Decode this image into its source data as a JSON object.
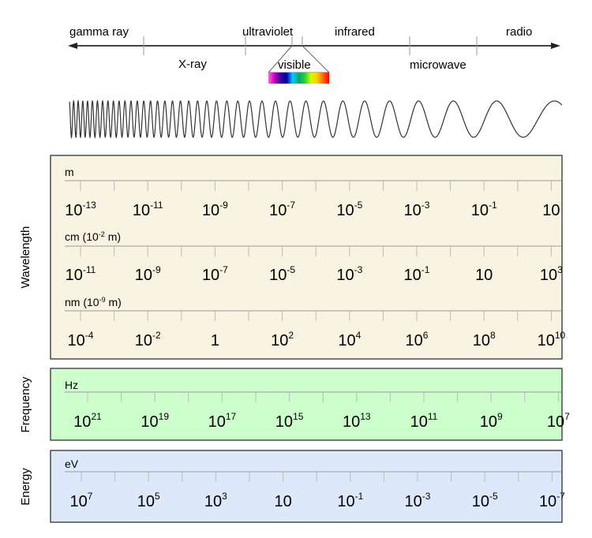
{
  "spectrum": {
    "bands_top": [
      "gamma ray",
      "ultraviolet",
      "infrared",
      "radio"
    ],
    "bands_bottom": [
      "X-ray",
      "visible",
      "microwave"
    ],
    "visible_colors": [
      "#ff66cc",
      "#cc00cc",
      "#330099",
      "#0000aa",
      "#00ccff",
      "#00aa66",
      "#33cc33",
      "#ccff00",
      "#ffcc00",
      "#ff6600",
      "#ff0000"
    ]
  },
  "wavelength": {
    "label": "Wavelength",
    "color": "#f8f4e2",
    "scales": [
      {
        "unit": "m",
        "unit_exp": "",
        "unit_tail": "",
        "ticks": [
          {
            "b": "10",
            "e": "-13"
          },
          {
            "b": "10",
            "e": "-11"
          },
          {
            "b": "10",
            "e": "-9"
          },
          {
            "b": "10",
            "e": "-7"
          },
          {
            "b": "10",
            "e": "-5"
          },
          {
            "b": "10",
            "e": "-3"
          },
          {
            "b": "10",
            "e": "-1"
          },
          {
            "b": "10",
            "e": ""
          }
        ]
      },
      {
        "unit": "cm (10",
        "unit_exp": "-2",
        "unit_tail": " m)",
        "ticks": [
          {
            "b": "10",
            "e": "-11"
          },
          {
            "b": "10",
            "e": "-9"
          },
          {
            "b": "10",
            "e": "-7"
          },
          {
            "b": "10",
            "e": "-5"
          },
          {
            "b": "10",
            "e": "-3"
          },
          {
            "b": "10",
            "e": "-1"
          },
          {
            "b": "10",
            "e": ""
          },
          {
            "b": "10",
            "e": "3"
          }
        ]
      },
      {
        "unit": "nm (10",
        "unit_exp": "-9",
        "unit_tail": " m)",
        "ticks": [
          {
            "b": "10",
            "e": "-4"
          },
          {
            "b": "10",
            "e": "-2"
          },
          {
            "b": "1",
            "e": ""
          },
          {
            "b": "10",
            "e": "2"
          },
          {
            "b": "10",
            "e": "4"
          },
          {
            "b": "10",
            "e": "6"
          },
          {
            "b": "10",
            "e": "8"
          },
          {
            "b": "10",
            "e": "10"
          }
        ]
      }
    ]
  },
  "frequency": {
    "label": "Frequency",
    "color": "#ccffcc",
    "unit": "Hz",
    "ticks": [
      {
        "b": "10",
        "e": "21"
      },
      {
        "b": "10",
        "e": "19"
      },
      {
        "b": "10",
        "e": "17"
      },
      {
        "b": "10",
        "e": "15"
      },
      {
        "b": "10",
        "e": "13"
      },
      {
        "b": "10",
        "e": "11"
      },
      {
        "b": "10",
        "e": "9"
      },
      {
        "b": "10",
        "e": "7"
      }
    ]
  },
  "energy": {
    "label": "Energy",
    "color": "#dde9fb",
    "unit": "eV",
    "ticks": [
      {
        "b": "10",
        "e": "7"
      },
      {
        "b": "10",
        "e": "5"
      },
      {
        "b": "10",
        "e": "3"
      },
      {
        "b": "10",
        "e": ""
      },
      {
        "b": "10",
        "e": "-1"
      },
      {
        "b": "10",
        "e": "-3"
      },
      {
        "b": "10",
        "e": "-5"
      },
      {
        "b": "10",
        "e": "-7"
      }
    ]
  }
}
